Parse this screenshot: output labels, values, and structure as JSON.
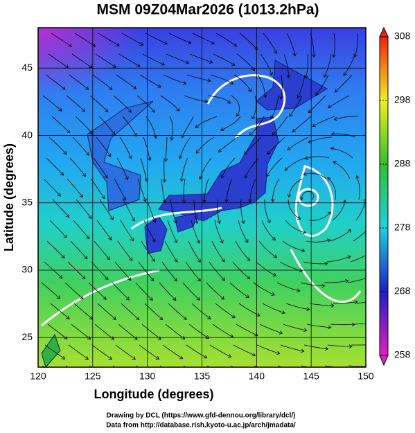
{
  "chart_data": {
    "type": "map",
    "title": "MSM 09Z04Mar2026 (1013.2hPa)",
    "xlabel": "Longitude (degrees)",
    "ylabel": "Latitude  (degrees)",
    "xlim": [
      120,
      150
    ],
    "ylim": [
      22.8,
      48
    ],
    "xticks": [
      120,
      125,
      130,
      135,
      140,
      145,
      150
    ],
    "yticks": [
      25,
      30,
      35,
      40,
      45
    ],
    "grid": true,
    "colorbar": {
      "lim": [
        258,
        308
      ],
      "ticks": [
        258,
        268,
        278,
        288,
        298,
        308
      ],
      "colors": [
        "#e020c0",
        "#2020c0",
        "#20d0e0",
        "#30c030",
        "#f0f020",
        "#f02010"
      ]
    },
    "footer": [
      "Drawing by DCL (https://www.gfd-dennou.org/library/dcl/)",
      "Data from http://database.rish.kyoto-u.ac.jp/arch/jmadata/"
    ]
  }
}
